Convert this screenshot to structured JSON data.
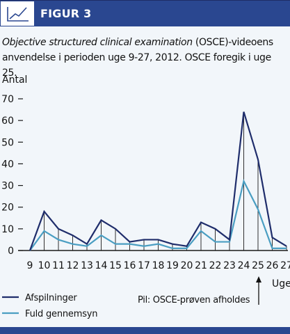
{
  "header": {
    "title": "FIGUR 3",
    "icon": "line-chart-icon"
  },
  "caption": {
    "italic": "Objective structured clinical examination",
    "rest": " (OSCE)-videoens anvendelse i perioden uge 9-27, 2012. OSCE foregik i uge 25."
  },
  "colors": {
    "header": "#2a4790",
    "series_dark": "#1f2d6b",
    "series_light": "#4a9ec2"
  },
  "chart_data": {
    "type": "line",
    "ylabel": "Antal",
    "xlabel": "Uge",
    "ylim": [
      0,
      70
    ],
    "yticks": [
      0,
      10,
      20,
      30,
      40,
      50,
      60,
      70
    ],
    "x": [
      9,
      10,
      11,
      12,
      13,
      14,
      15,
      16,
      17,
      18,
      19,
      20,
      21,
      22,
      23,
      24,
      25,
      26,
      27
    ],
    "series": [
      {
        "name": "Afspilninger",
        "color": "#1f2d6b",
        "values": [
          0,
          18,
          10,
          7,
          3,
          14,
          10,
          4,
          5,
          5,
          3,
          2,
          13,
          10,
          5,
          64,
          42,
          6,
          2
        ]
      },
      {
        "name": "Fuld gennemsyn",
        "color": "#4a9ec2",
        "values": [
          0,
          9,
          5,
          3,
          2,
          7,
          3,
          3,
          2,
          3,
          1,
          1,
          9,
          4,
          4,
          32,
          19,
          1,
          1
        ]
      }
    ],
    "legend_position": "bottom-left",
    "annotation": {
      "text": "Pil: OSCE-prøven afholdes",
      "x": 25
    },
    "grid": false
  }
}
